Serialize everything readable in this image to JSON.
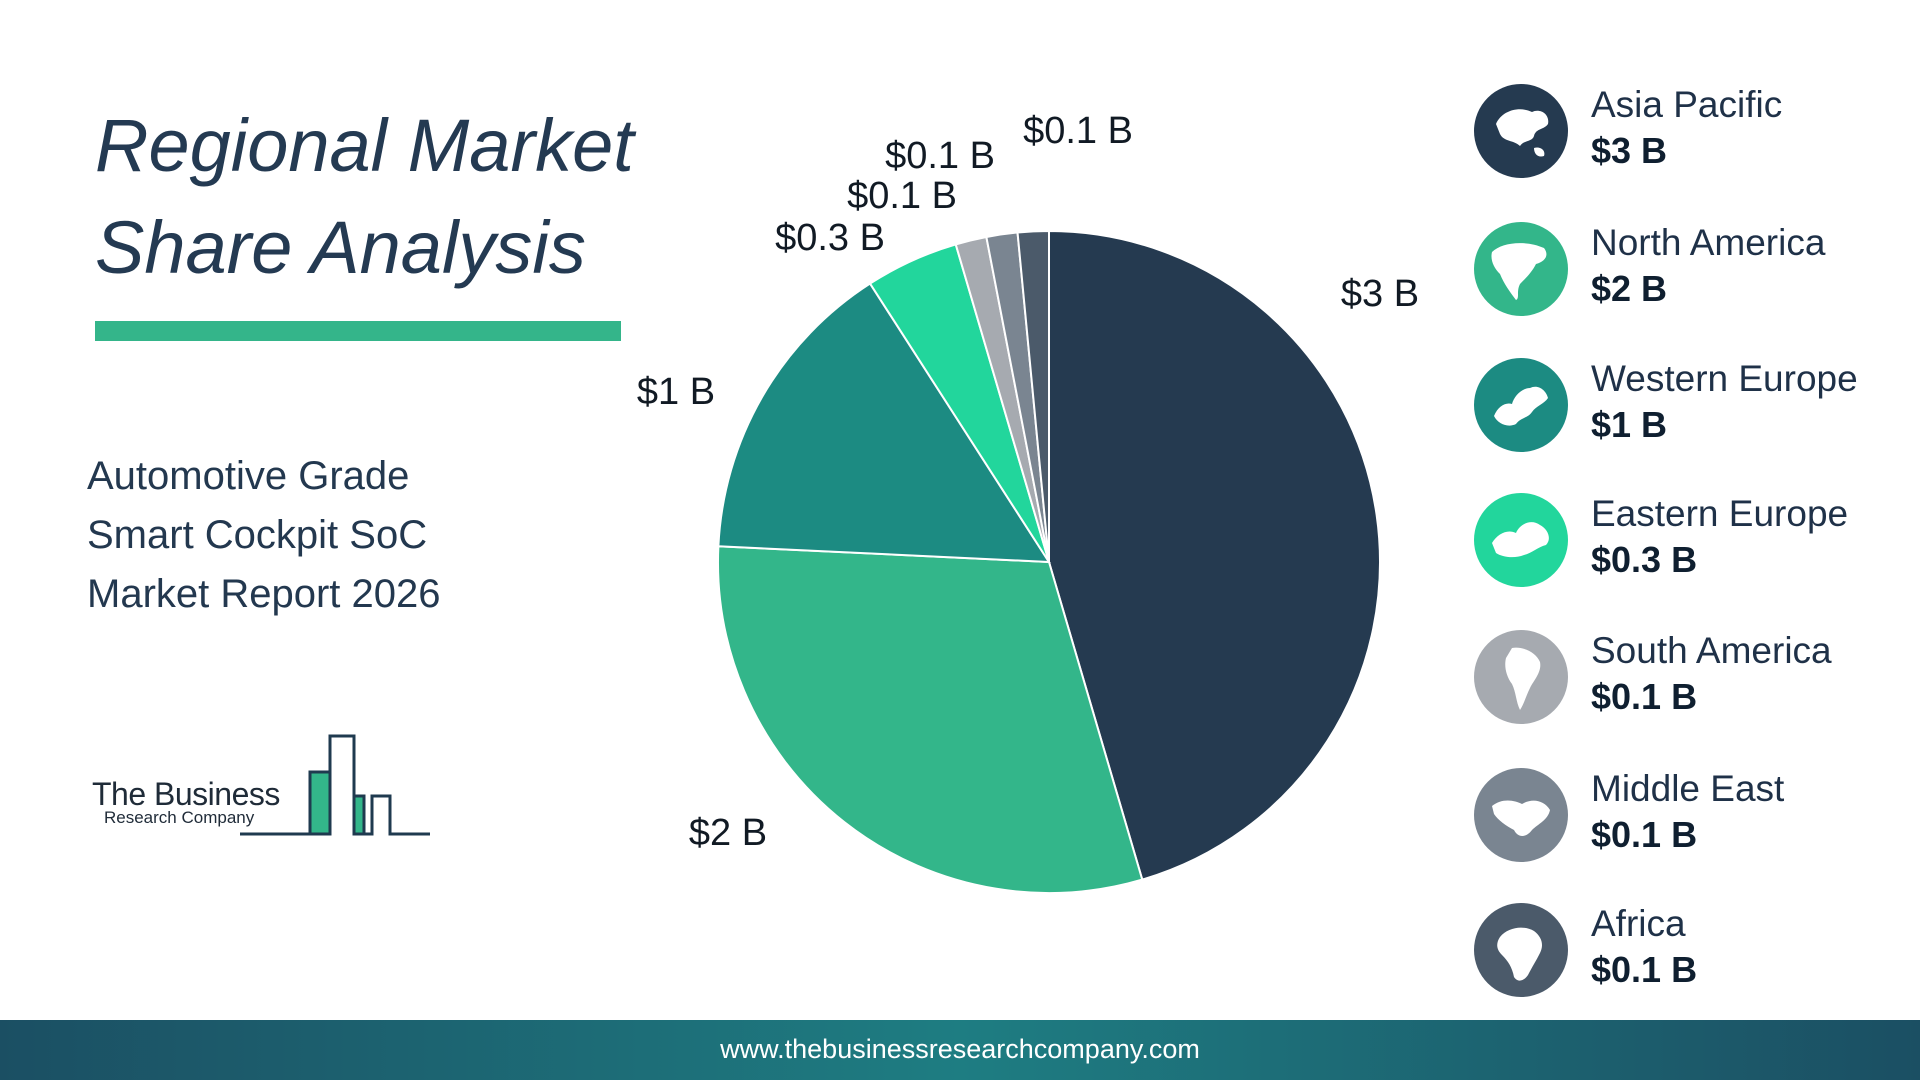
{
  "header": {
    "title_line1": "Regional Market",
    "title_line2": "Share Analysis"
  },
  "report": {
    "line1": "Automotive Grade",
    "line2": "Smart Cockpit SoC",
    "line3": "Market Report 2026"
  },
  "logo": {
    "name_line1": "The Business",
    "name_line2": "Research Company"
  },
  "footer": {
    "url": "www.thebusinessresearchcompany.com"
  },
  "colors": {
    "title": "#243a52",
    "accent_bar": "#34b58a",
    "footer_start": "#1b4f63",
    "footer_mid": "#1e7d82"
  },
  "chart_data": {
    "type": "pie",
    "start_angle_deg": 0,
    "direction": "clockwise",
    "slices": [
      {
        "label": "Asia Pacific",
        "value": 3,
        "value_label": "$3 B",
        "color": "#253a50",
        "icon": "asia-pacific-map-icon"
      },
      {
        "label": "North America",
        "value": 2,
        "value_label": "$2 B",
        "color": "#33b68a",
        "icon": "north-america-map-icon"
      },
      {
        "label": "Western Europe",
        "value": 1,
        "value_label": "$1 B",
        "color": "#1c8b82",
        "icon": "western-europe-map-icon"
      },
      {
        "label": "Eastern Europe",
        "value": 0.3,
        "value_label": "$0.3 B",
        "color": "#22d69c",
        "icon": "eastern-europe-map-icon"
      },
      {
        "label": "South America",
        "value": 0.1,
        "value_label": "$0.1 B",
        "color": "#a6aab0",
        "icon": "south-america-map-icon"
      },
      {
        "label": "Middle East",
        "value": 0.1,
        "value_label": "$0.1 B",
        "color": "#7a8591",
        "icon": "middle-east-map-icon"
      },
      {
        "label": "Africa",
        "value": 0.1,
        "value_label": "$0.1 B",
        "color": "#4b5a6a",
        "icon": "africa-map-icon"
      }
    ],
    "legend_placement": "right"
  }
}
